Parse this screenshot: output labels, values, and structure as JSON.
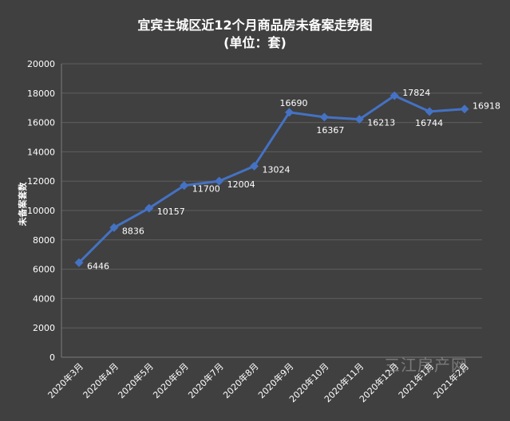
{
  "chart_data": {
    "type": "line",
    "title": "宜宾主城区近12个月商品房未备案走势图",
    "subtitle": "(单位：套)",
    "xlabel": "",
    "ylabel": "未备案套数",
    "ylim": [
      0,
      20000
    ],
    "ytick_step": 2000,
    "grid": true,
    "categories": [
      "2020年3月",
      "2020年4月",
      "2020年5月",
      "2020年6月",
      "2020年7月",
      "2020年8月",
      "2020年9月",
      "2020年10月",
      "2020年11月",
      "2020年12月",
      "2021年1月",
      "2021年2月"
    ],
    "series": [
      {
        "name": "未备案套数",
        "values": [
          6446,
          8836,
          10157,
          11700,
          12004,
          13024,
          16690,
          16367,
          16213,
          17824,
          16744,
          16918
        ],
        "color": "#4472C4"
      }
    ]
  },
  "watermark": "三江房产网",
  "colors": {
    "background": "#404040",
    "grid": "#5e5e5e",
    "text": "#ffffff",
    "line": "#4472C4"
  }
}
